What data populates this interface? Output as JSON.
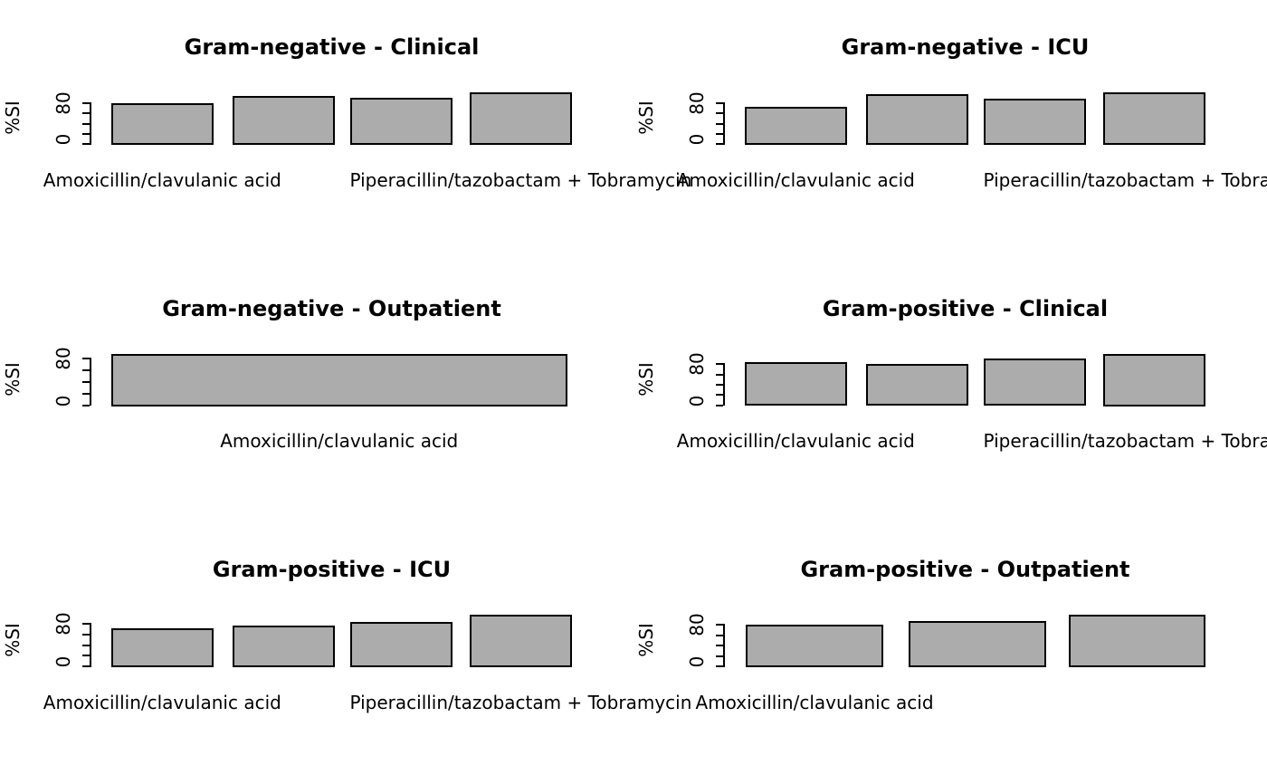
{
  "figure": {
    "background": "#ffffff",
    "bar_fill": "#ACACAC",
    "bar_border": "#000000",
    "grid": "3 rows x 2 columns"
  },
  "chart_data": [
    {
      "type": "bar",
      "title": "Gram-negative - Clinical",
      "ylabel": "%SI",
      "values": [
        79,
        92,
        90,
        100
      ],
      "ylim": [
        0,
        100
      ],
      "yticks": [
        0,
        20,
        40,
        60,
        80
      ],
      "ytick_labels": [
        "0",
        "80"
      ],
      "bar_labels": [
        {
          "bar": 1,
          "text": "Amoxicillin/clavulanic acid"
        },
        {
          "bar": 4,
          "text": "Piperacillin/tazobactam + Tobramycin"
        }
      ]
    },
    {
      "type": "bar",
      "title": "Gram-negative - ICU",
      "ylabel": "%SI",
      "values": [
        71,
        96,
        88,
        100
      ],
      "ylim": [
        0,
        100
      ],
      "yticks": [
        0,
        20,
        40,
        60,
        80
      ],
      "ytick_labels": [
        "0",
        "80"
      ],
      "bar_labels": [
        {
          "bar": 1,
          "text": "Amoxicillin/clavulanic acid"
        },
        {
          "bar": 4,
          "text": "Piperacillin/tazobactam + Tobramycin"
        }
      ]
    },
    {
      "type": "bar",
      "title": "Gram-negative - Outpatient",
      "ylabel": "%SI",
      "values": [
        87
      ],
      "ylim": [
        0,
        87
      ],
      "yticks": [
        0,
        20,
        40,
        60,
        80
      ],
      "ytick_labels": [
        "0",
        "80"
      ],
      "bar_labels": [
        {
          "bar": 1,
          "text": "Amoxicillin/clavulanic acid"
        }
      ]
    },
    {
      "type": "bar",
      "title": "Gram-positive - Clinical",
      "ylabel": "%SI",
      "values": [
        82,
        79,
        90,
        99
      ],
      "ylim": [
        0,
        99
      ],
      "yticks": [
        0,
        20,
        40,
        60,
        80
      ],
      "ytick_labels": [
        "0",
        "80"
      ],
      "bar_labels": [
        {
          "bar": 1,
          "text": "Amoxicillin/clavulanic acid"
        },
        {
          "bar": 4,
          "text": "Piperacillin/tazobactam + Tobramycin"
        }
      ]
    },
    {
      "type": "bar",
      "title": "Gram-positive - ICU",
      "ylabel": "%SI",
      "values": [
        71,
        75,
        83,
        96
      ],
      "ylim": [
        0,
        96
      ],
      "yticks": [
        0,
        20,
        40,
        60,
        80
      ],
      "ytick_labels": [
        "0",
        "80"
      ],
      "bar_labels": [
        {
          "bar": 1,
          "text": "Amoxicillin/clavulanic acid"
        },
        {
          "bar": 4,
          "text": "Piperacillin/tazobactam + Tobramycin"
        }
      ]
    },
    {
      "type": "bar",
      "title": "Gram-positive - Outpatient",
      "ylabel": "%SI",
      "values": [
        79,
        85,
        98
      ],
      "ylim": [
        0,
        98
      ],
      "yticks": [
        0,
        20,
        40,
        60,
        80
      ],
      "ytick_labels": [
        "0",
        "80"
      ],
      "bar_labels": [
        {
          "bar": 1,
          "text": "Amoxicillin/clavulanic acid"
        }
      ]
    }
  ]
}
